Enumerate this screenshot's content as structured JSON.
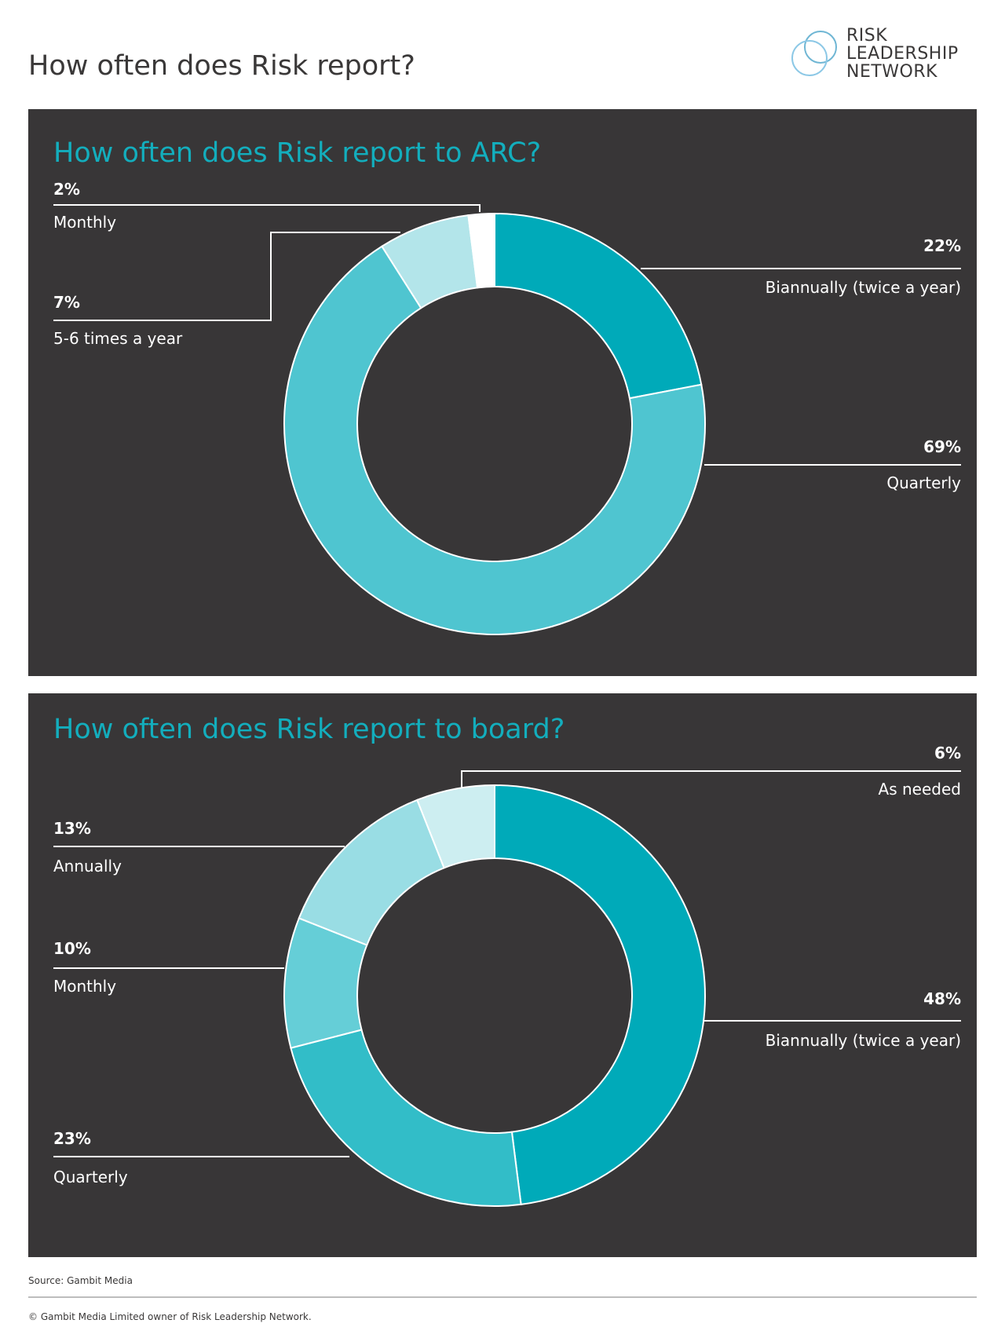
{
  "page_title": "How often does Risk report?",
  "logo": {
    "line1": "RISK",
    "line2": "LEADERSHIP",
    "line3": "NETWORK",
    "color": "#5aaed8"
  },
  "chart_data": [
    {
      "type": "pie",
      "variant": "donut",
      "title": "How often does Risk report to ARC?",
      "categories": [
        "Biannually (twice a year)",
        "Quarterly",
        "5-6 times a year",
        "Monthly"
      ],
      "values": [
        22,
        69,
        7,
        2
      ],
      "labels": [
        "22%",
        "69%",
        "7%",
        "2%"
      ],
      "colors": [
        "#00aab9",
        "#4fc5d0",
        "#b3e5ea",
        "#ffffff"
      ]
    },
    {
      "type": "pie",
      "variant": "donut",
      "title": "How often does Risk report to board?",
      "categories": [
        "Biannually (twice a year)",
        "Quarterly",
        "Monthly",
        "Annually",
        "As needed"
      ],
      "values": [
        48,
        23,
        10,
        13,
        6
      ],
      "labels": [
        "48%",
        "23%",
        "10%",
        "13%",
        "6%"
      ],
      "colors": [
        "#00aab9",
        "#32bdc8",
        "#65ced7",
        "#99dde4",
        "#cdeef1"
      ]
    }
  ],
  "footer": {
    "source": "Source: Gambit Media",
    "copyright": "© Gambit Media Limited owner of Risk Leadership Network."
  }
}
